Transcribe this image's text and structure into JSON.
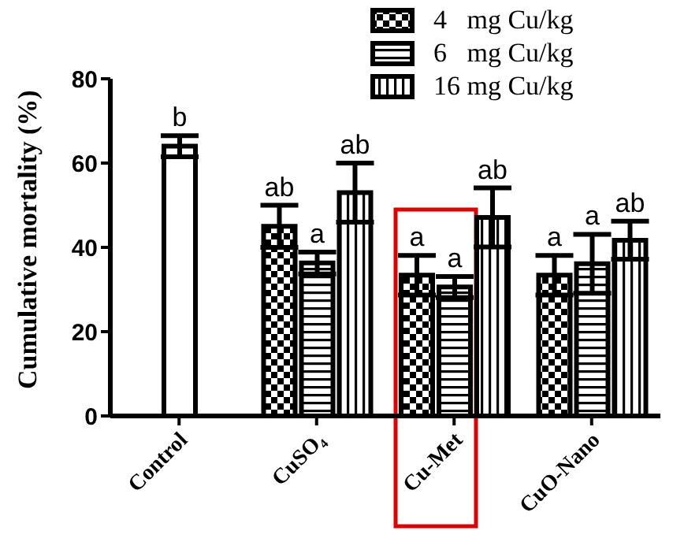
{
  "chart_data": {
    "type": "bar",
    "ylabel": "Cumulative mortality (%)",
    "categories": [
      "Control",
      "CuSO₄",
      "Cu-Met",
      "CuO-Nano"
    ],
    "series": [
      {
        "color": "#ffffff",
        "values": [
          64,
          null,
          null,
          null
        ],
        "errors": [
          2.5,
          null,
          null,
          null
        ],
        "value_labels": [
          "b",
          null,
          null,
          null
        ]
      },
      {
        "name": "4   mg Cu/kg",
        "color": "#000000",
        "values": [
          null,
          45,
          33.4,
          33.4
        ],
        "errors": [
          null,
          5,
          4.7,
          4.7
        ],
        "value_labels": [
          null,
          "ab",
          "a",
          "a"
        ]
      },
      {
        "name": "6   mg Cu/kg",
        "color": "#000000",
        "values": [
          null,
          36.3,
          30.6,
          36.1
        ],
        "errors": [
          null,
          2.6,
          2.5,
          7
        ],
        "value_labels": [
          null,
          "a",
          "a",
          "a"
        ]
      },
      {
        "name": "16 mg Cu/kg",
        "color": "#000000",
        "values": [
          null,
          53,
          47.1,
          41.7
        ],
        "errors": [
          null,
          7,
          7,
          4.5
        ],
        "value_labels": [
          null,
          "ab",
          "ab",
          "ab"
        ]
      }
    ],
    "ylim": [
      0,
      80
    ],
    "yticks": [
      0,
      20,
      40,
      60,
      80
    ],
    "legend": "top right"
  }
}
